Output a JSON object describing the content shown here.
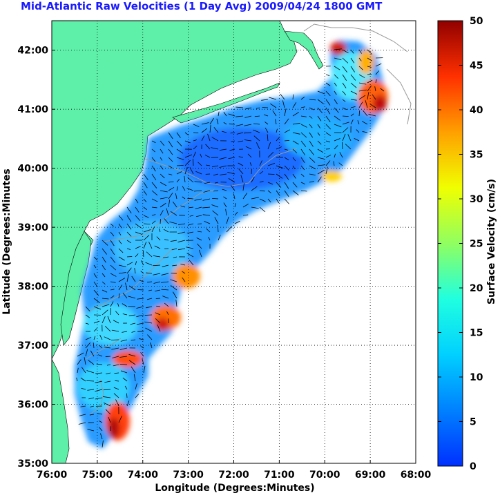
{
  "title": "Mid-Atlantic Raw Velocities (1 Day Avg) 2009/04/24 1800 GMT",
  "map": {
    "xlabel": "Longitude (Degrees:Minutes)",
    "ylabel": "Latitude (Degrees:Minutes",
    "x_ticks": [
      "76:00",
      "75:00",
      "74:00",
      "73:00",
      "72:00",
      "71:00",
      "70:00",
      "69:00",
      "68:00"
    ],
    "y_ticks": [
      "35:00",
      "36:00",
      "37:00",
      "38:00",
      "39:00",
      "40:00",
      "41:00",
      "42:00"
    ],
    "lon_range": [
      -76,
      -68
    ],
    "lat_range": [
      35,
      42.5
    ],
    "land_color": "#5ef0a8",
    "grid": "dotted"
  },
  "colorbar": {
    "label": "Surface Velocity (cm/s)",
    "ticks": [
      "0",
      "5",
      "10",
      "15",
      "20",
      "25",
      "30",
      "35",
      "40",
      "45",
      "50"
    ],
    "range": [
      0,
      50
    ],
    "colormap": "jet"
  }
}
